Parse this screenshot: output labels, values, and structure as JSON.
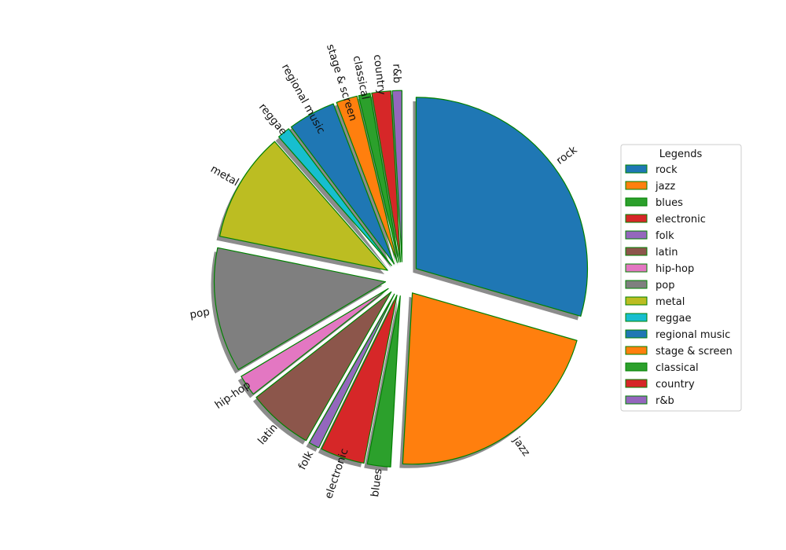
{
  "chart_data": {
    "type": "pie",
    "legend_title": "Legends",
    "legend_position": "right",
    "slices": [
      {
        "label": "rock",
        "value": 29.6,
        "color": "#1f77b4"
      },
      {
        "label": "jazz",
        "value": 21.5,
        "color": "#ff7f0e"
      },
      {
        "label": "blues",
        "value": 2.2,
        "color": "#2ca02c"
      },
      {
        "label": "electronic",
        "value": 4.2,
        "color": "#d62728"
      },
      {
        "label": "folk",
        "value": 1.0,
        "color": "#9467bd"
      },
      {
        "label": "latin",
        "value": 6.2,
        "color": "#8c564b"
      },
      {
        "label": "hip-hop",
        "value": 2.0,
        "color": "#e377c2"
      },
      {
        "label": "pop",
        "value": 11.8,
        "color": "#7f7f7f"
      },
      {
        "label": "metal",
        "value": 10.4,
        "color": "#bcbd22"
      },
      {
        "label": "reggae",
        "value": 1.2,
        "color": "#17becf"
      },
      {
        "label": "regional music",
        "value": 4.5,
        "color": "#1f77b4"
      },
      {
        "label": "stage & screen",
        "value": 2.0,
        "color": "#ff7f0e"
      },
      {
        "label": "classical",
        "value": 1.1,
        "color": "#2ca02c"
      },
      {
        "label": "country",
        "value": 1.8,
        "color": "#d62728"
      },
      {
        "label": "r&b",
        "value": 0.9,
        "color": "#9467bd"
      }
    ],
    "edge_color": "#008000",
    "shadow": true,
    "exploded": true
  }
}
